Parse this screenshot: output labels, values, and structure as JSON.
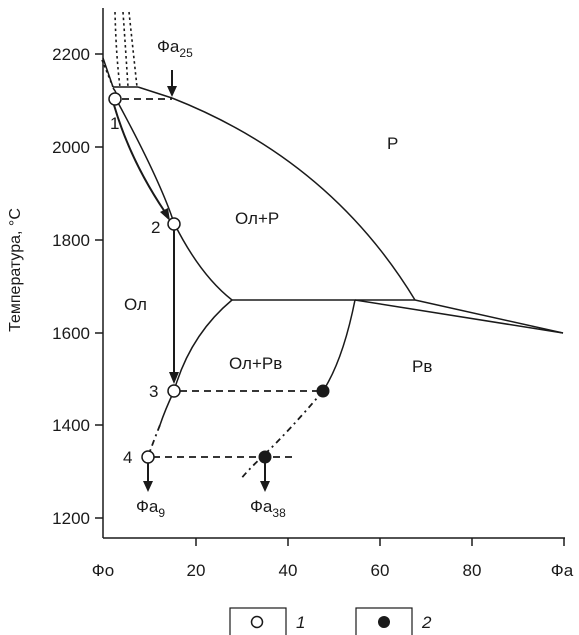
{
  "axes": {
    "y_title": "Температура, °C",
    "x_ticks": [
      {
        "value": 0,
        "label": "Фо"
      },
      {
        "value": 20,
        "label": "20"
      },
      {
        "value": 40,
        "label": "40"
      },
      {
        "value": 60,
        "label": "60"
      },
      {
        "value": 80,
        "label": "80"
      },
      {
        "value": 100,
        "label": "Фа"
      }
    ],
    "y_ticks": [
      {
        "value": 1200,
        "label": "1200"
      },
      {
        "value": 1400,
        "label": "1400"
      },
      {
        "value": 1600,
        "label": "1600"
      },
      {
        "value": 1800,
        "label": "1800"
      },
      {
        "value": 2000,
        "label": "2000"
      },
      {
        "value": 2200,
        "label": "2200"
      }
    ]
  },
  "regions": {
    "p": "Р",
    "ol_p": "Ол+Р",
    "ol": "Ол",
    "ol_pv": "Ол+Рв",
    "pv": "Рв"
  },
  "points": [
    "1",
    "2",
    "3",
    "4"
  ],
  "phases": {
    "fa25": {
      "base": "Фа",
      "sub": "25"
    },
    "fa9": {
      "base": "Фа",
      "sub": "9"
    },
    "fa38": {
      "base": "Фа",
      "sub": "38"
    }
  },
  "legend": {
    "open_circle_label": "1",
    "filled_circle_label": "2"
  }
}
